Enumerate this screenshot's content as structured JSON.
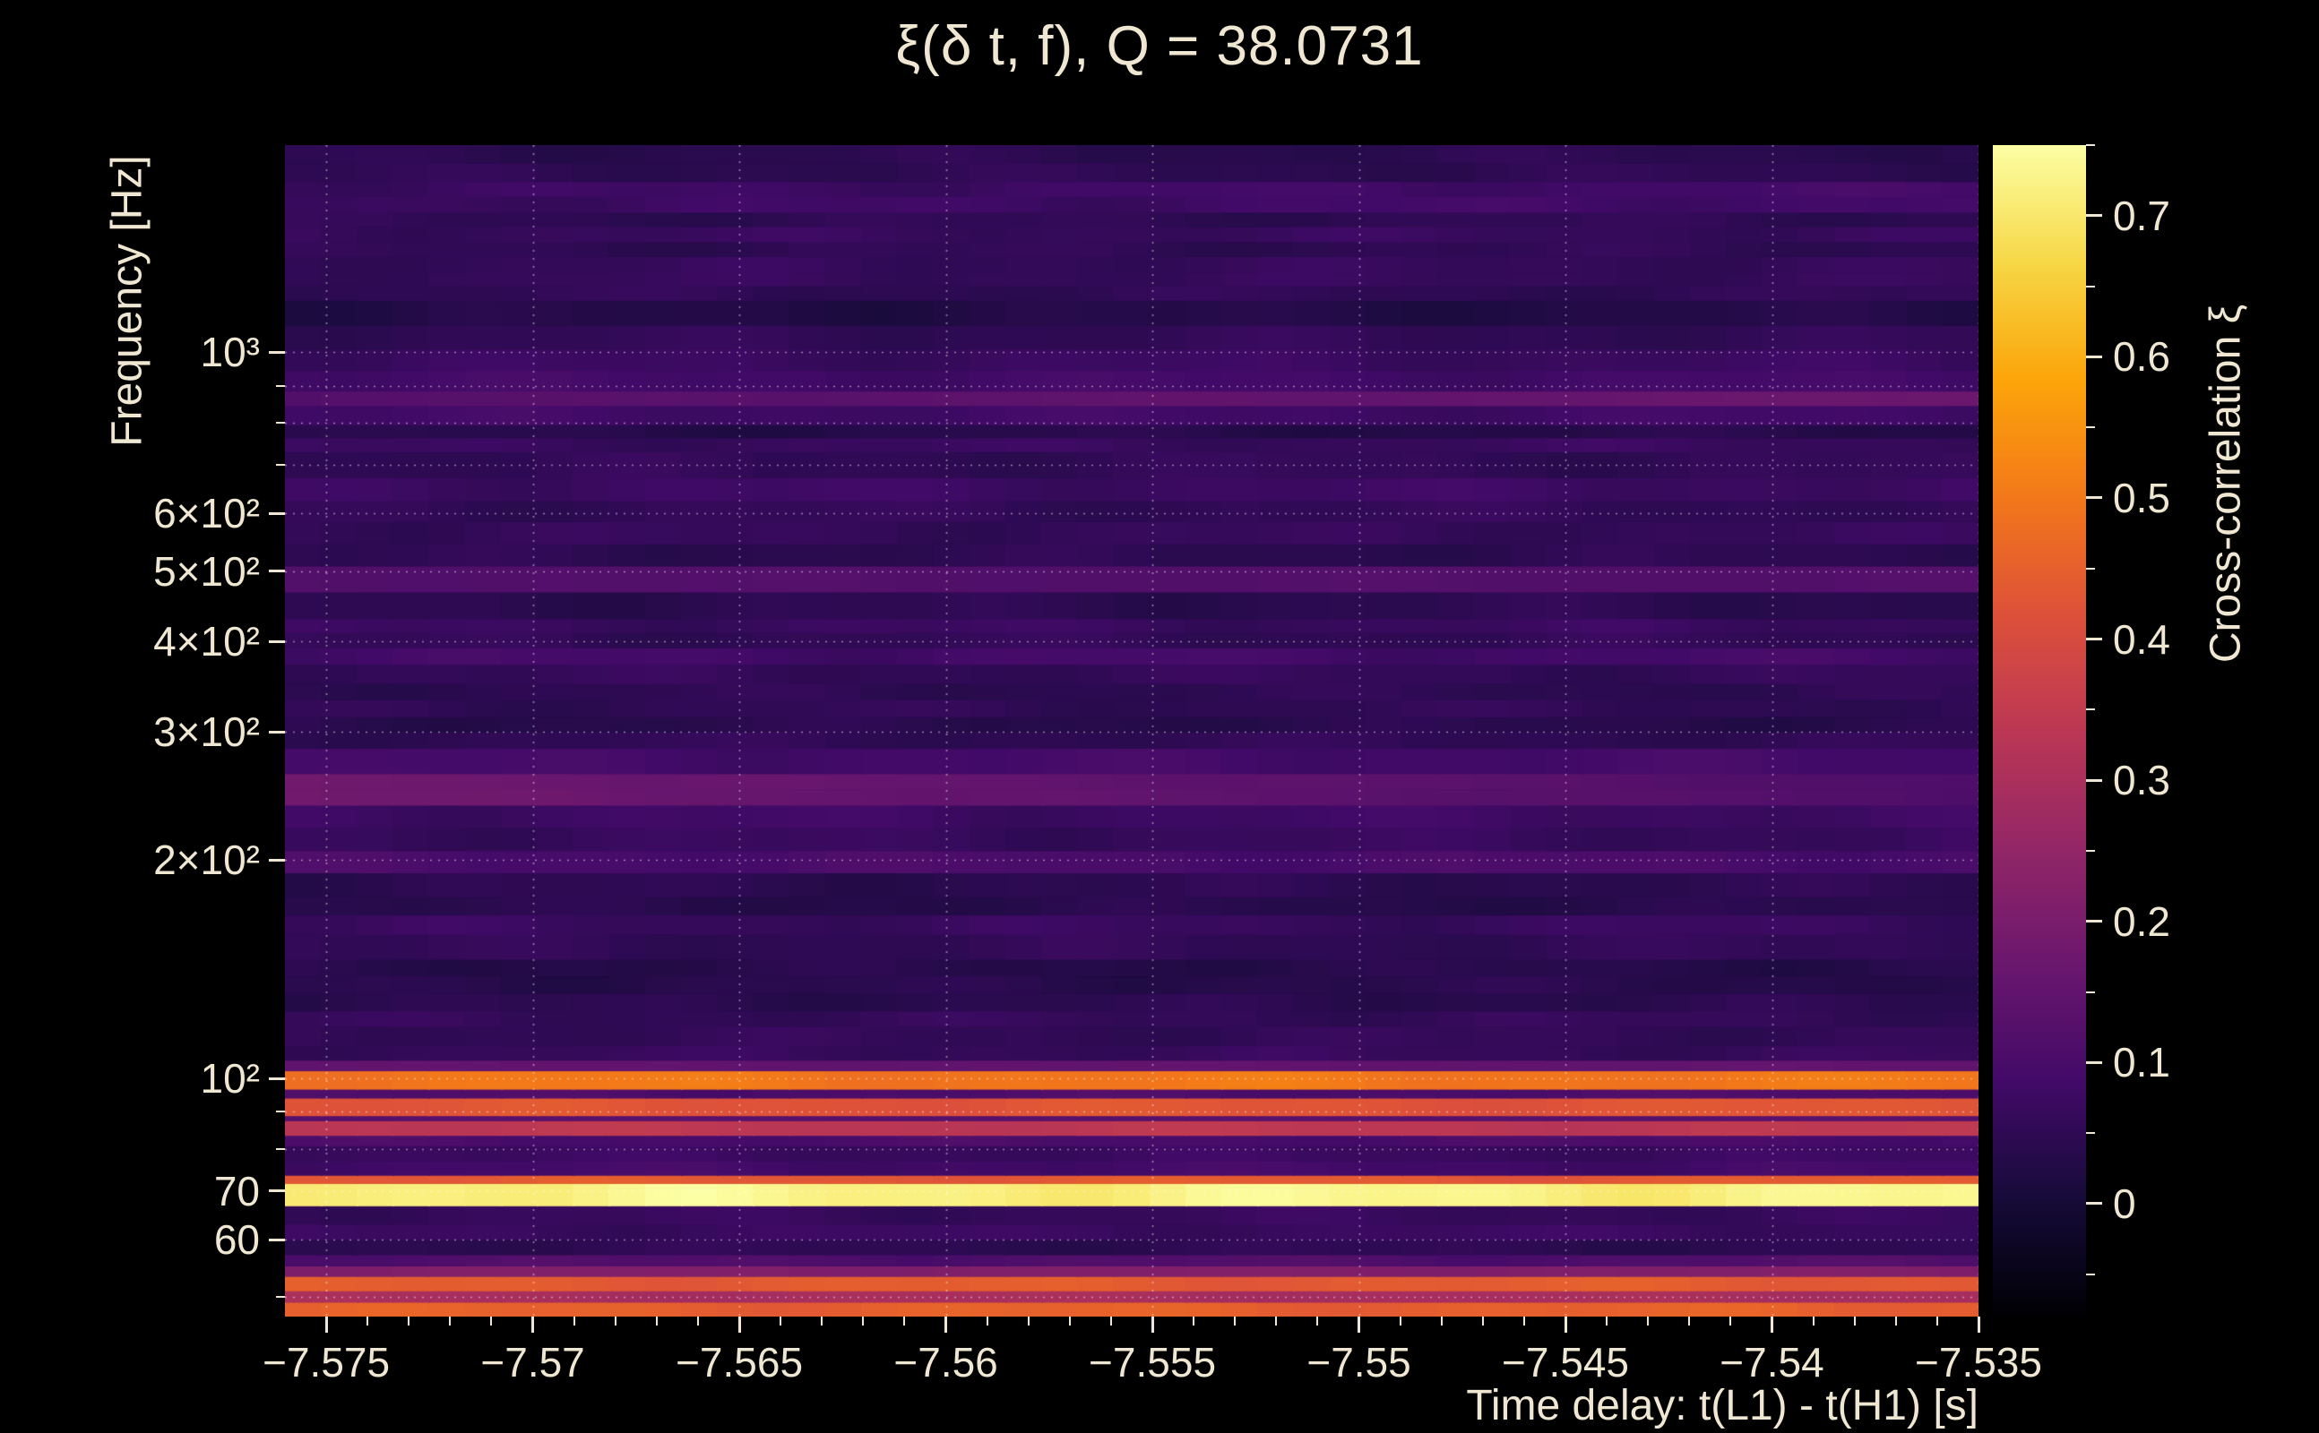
{
  "figure": {
    "background": "#000000",
    "text_color": "#f0e7d2"
  },
  "chart_data": {
    "type": "heatmap",
    "title": "ξ(δ t, f), Q = 38.0731",
    "xlabel": "Time delay: t(L1) - t(H1) [s]",
    "ylabel": "Frequency [Hz]",
    "colorbar_label": "Cross-correlation ξ",
    "colormap": "inferno",
    "x_range": [
      -7.576,
      -7.535
    ],
    "x_ticks": [
      -7.575,
      -7.57,
      -7.565,
      -7.56,
      -7.555,
      -7.55,
      -7.545,
      -7.54,
      -7.535
    ],
    "x_tick_labels": [
      "−7.575",
      "−7.57",
      "−7.565",
      "−7.56",
      "−7.555",
      "−7.55",
      "−7.545",
      "−7.54",
      "−7.535"
    ],
    "x_minor_step": 0.001,
    "y_scale": "log",
    "y_range": [
      47,
      1930
    ],
    "y_ticks": [
      {
        "v": 1000,
        "label": "10³"
      },
      {
        "v": 600,
        "label": "6×10²"
      },
      {
        "v": 500,
        "label": "5×10²"
      },
      {
        "v": 400,
        "label": "4×10²"
      },
      {
        "v": 300,
        "label": "3×10²"
      },
      {
        "v": 200,
        "label": "2×10²"
      },
      {
        "v": 100,
        "label": "10²"
      },
      {
        "v": 70,
        "label": "70"
      },
      {
        "v": 60,
        "label": "60"
      }
    ],
    "y_minor_ticks": [
      50,
      80,
      90,
      700,
      800,
      900
    ],
    "grid_y": [
      50,
      60,
      70,
      80,
      90,
      100,
      200,
      300,
      400,
      500,
      600,
      700,
      800,
      900,
      1000
    ],
    "grid_on": true,
    "colorbar": {
      "min": -0.08,
      "max": 0.75,
      "ticks": [
        0,
        0.1,
        0.2,
        0.3,
        0.4,
        0.5,
        0.6,
        0.7
      ],
      "tick_labels": [
        "0",
        "0.1",
        "0.2",
        "0.3",
        "0.4",
        "0.5",
        "0.6",
        "0.7"
      ],
      "minor_ticks": [
        -0.05,
        0.05,
        0.15,
        0.25,
        0.35,
        0.45,
        0.55,
        0.65,
        0.75
      ]
    },
    "bands_comment": "horizontal cross-correlation bands: [freq_low_Hz, freq_high_Hz, xi, optional slope_left_to_right]",
    "bands": [
      [
        47.0,
        49.2,
        0.46
      ],
      [
        49.2,
        51.0,
        0.3
      ],
      [
        51.0,
        53.4,
        0.43
      ],
      [
        53.4,
        55.2,
        0.22
      ],
      [
        55.2,
        57.2,
        0.1
      ],
      [
        57.2,
        60.0,
        0.055
      ],
      [
        60.0,
        63.0,
        0.075
      ],
      [
        63.0,
        66.8,
        0.055
      ],
      [
        66.8,
        71.7,
        0.74
      ],
      [
        71.7,
        73.6,
        0.42
      ],
      [
        73.6,
        77.0,
        0.09
      ],
      [
        77.0,
        80.8,
        0.065
      ],
      [
        80.8,
        83.5,
        0.1
      ],
      [
        83.5,
        87.5,
        0.34
      ],
      [
        87.5,
        88.9,
        0.13
      ],
      [
        88.9,
        94.0,
        0.43
      ],
      [
        94.0,
        96.7,
        0.11
      ],
      [
        96.7,
        102.5,
        0.5
      ],
      [
        102.5,
        106.0,
        0.17
      ],
      [
        106.0,
        111.0,
        0.08
      ],
      [
        111.0,
        118.0,
        0.055
      ],
      [
        118.0,
        124.0,
        0.075
      ],
      [
        124.0,
        131.0,
        0.05
      ],
      [
        131.0,
        146.0,
        0.025
      ],
      [
        146.0,
        158.0,
        0.045
      ],
      [
        158.0,
        168.0,
        0.065
      ],
      [
        168.0,
        178.0,
        0.04
      ],
      [
        178.0,
        192.0,
        0.055
      ],
      [
        192.0,
        206.0,
        0.1
      ],
      [
        206.0,
        222.0,
        0.06
      ],
      [
        222.0,
        238.0,
        0.075
      ],
      [
        238.0,
        263.0,
        0.17,
        -0.07
      ],
      [
        263.0,
        285.0,
        0.07
      ],
      [
        285.0,
        315.0,
        0.05
      ],
      [
        315.0,
        350.0,
        0.045
      ],
      [
        350.0,
        372.0,
        0.065
      ],
      [
        372.0,
        392.0,
        0.075
      ],
      [
        392.0,
        430.0,
        0.05
      ],
      [
        430.0,
        468.0,
        0.055
      ],
      [
        468.0,
        508.0,
        0.14
      ],
      [
        508.0,
        545.0,
        0.06
      ],
      [
        545.0,
        585.0,
        0.05
      ],
      [
        585.0,
        625.0,
        0.065
      ],
      [
        625.0,
        672.0,
        0.08
      ],
      [
        672.0,
        730.0,
        0.055
      ],
      [
        730.0,
        795.0,
        0.05
      ],
      [
        795.0,
        845.0,
        0.1
      ],
      [
        845.0,
        885.0,
        0.13,
        0.05
      ],
      [
        885.0,
        945.0,
        0.085
      ],
      [
        945.0,
        1010.0,
        0.06
      ],
      [
        1010.0,
        1090.0,
        0.05
      ],
      [
        1090.0,
        1180.0,
        0.04
      ],
      [
        1180.0,
        1290.0,
        0.045
      ],
      [
        1290.0,
        1420.0,
        0.055
      ],
      [
        1420.0,
        1560.0,
        0.05
      ],
      [
        1560.0,
        1720.0,
        0.065,
        0.02
      ],
      [
        1720.0,
        1930.0,
        0.045
      ]
    ]
  }
}
